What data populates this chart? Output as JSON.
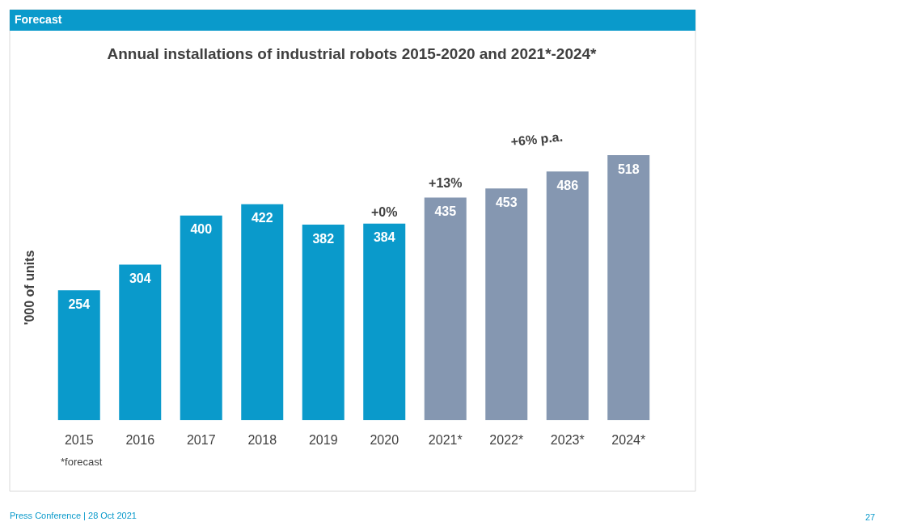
{
  "chart_data": {
    "type": "bar",
    "title": "Annual installations of industrial robots 2015-2020 and 2021*-2024*",
    "subtitle": "Forecast",
    "ylabel": "'000 of units",
    "categories": [
      "2015",
      "2016",
      "2017",
      "2018",
      "2019",
      "2020",
      "2021*",
      "2022*",
      "2023*",
      "2024*"
    ],
    "values": [
      254,
      304,
      400,
      422,
      382,
      384,
      435,
      453,
      486,
      518
    ],
    "colors": [
      "#0a9acb",
      "#0a9acb",
      "#0a9acb",
      "#0a9acb",
      "#0a9acb",
      "#0a9acb",
      "#8597b1",
      "#8597b1",
      "#8597b1",
      "#8597b1"
    ],
    "data_labels": true,
    "grid": false,
    "annotations": [
      "+0%",
      "+13%",
      "+6% p.a.",
      "*forecast",
      "Press Conference | 28 Oct 2021",
      "27"
    ]
  }
}
